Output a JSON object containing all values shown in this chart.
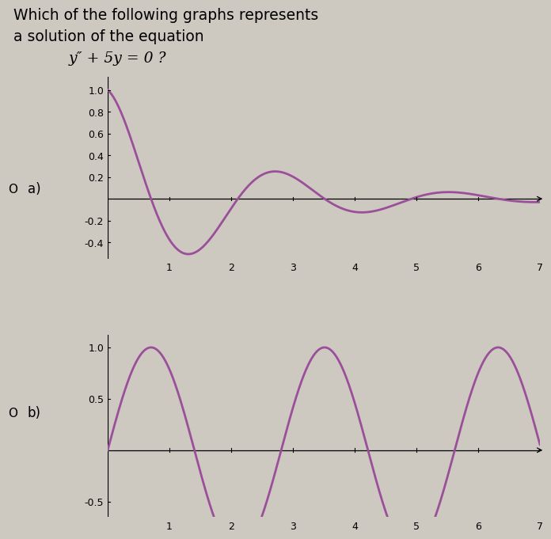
{
  "title_line1": "Which of the following graphs represents",
  "title_line2": "a solution of the equation",
  "title_line3": "y″ + 5y = 0 ?",
  "background_color": "#cdc8c0",
  "curve_color": "#9b4f9a",
  "label_a": "a)",
  "label_b": "b)",
  "graph_a": {
    "xlim": [
      0,
      7
    ],
    "ylim_low": -0.55,
    "ylim_high": 1.12,
    "yticks": [
      -0.4,
      -0.2,
      0.2,
      0.4,
      0.6,
      0.8,
      1.0
    ],
    "yticklabels": [
      "-0.4",
      "-0.2",
      "0.2",
      "0.4",
      "0.6",
      "0.8",
      "1.0"
    ],
    "xticks": [
      1,
      2,
      3,
      4,
      5,
      6,
      7
    ],
    "decay": 0.5,
    "omega": 2.23606797749979
  },
  "graph_b": {
    "xlim": [
      0,
      7
    ],
    "ylim_low": -0.65,
    "ylim_high": 1.12,
    "yticks": [
      -0.5,
      0.5,
      1.0
    ],
    "yticklabels": [
      "-0.5",
      "0.5",
      "1.0"
    ],
    "xticks": [
      1,
      2,
      3,
      4,
      5,
      6,
      7
    ],
    "omega": 2.23606797749979
  }
}
